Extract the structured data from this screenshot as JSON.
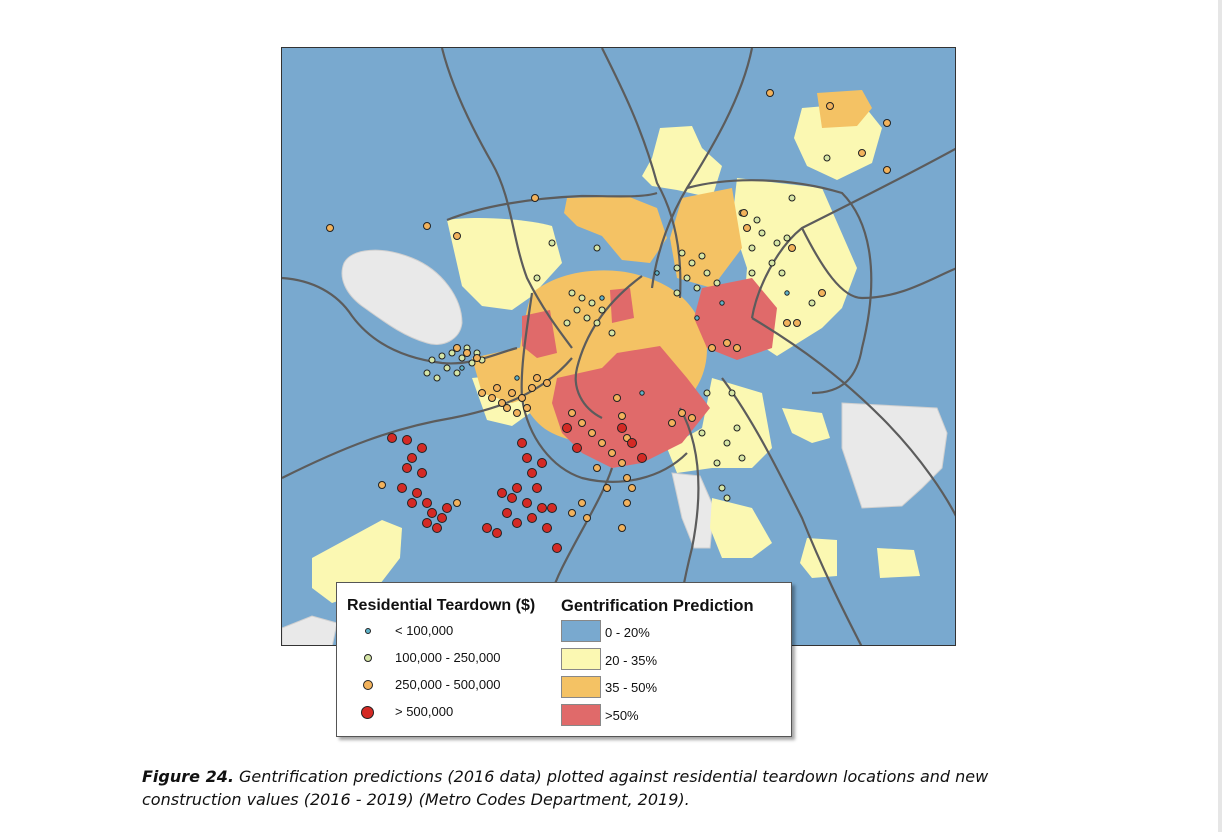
{
  "legend": {
    "teardown_title": "Residential Teardown ($)",
    "gentrification_title": "Gentrification Prediction",
    "teardown_classes": [
      {
        "label": "< 100,000",
        "color": "#5fb3c9",
        "size": "small"
      },
      {
        "label": "100,000 - 250,000",
        "color": "#d6e6a6",
        "size": "medium"
      },
      {
        "label": "250,000 - 500,000",
        "color": "#f2b25c",
        "size": "medium-large"
      },
      {
        "label": "> 500,000",
        "color": "#d42a25",
        "size": "large"
      }
    ],
    "gentrification_classes": [
      {
        "label": "0 - 20%",
        "color": "#79a9cf"
      },
      {
        "label": "20 - 35%",
        "color": "#fbf8b2"
      },
      {
        "label": "35 - 50%",
        "color": "#f4c264"
      },
      {
        "label": ">50%",
        "color": "#e06a6a"
      }
    ]
  },
  "caption": {
    "figure_label": "Figure 24.",
    "text": " Gentrification predictions (2016 data) plotted against residential teardown locations and new construction values (2016 - 2019) (Metro Codes Department, 2019)."
  },
  "colors": {
    "water_background": "#79a9cf",
    "excluded_area": "#e8e8e8",
    "road": "#5c5c5c"
  }
}
